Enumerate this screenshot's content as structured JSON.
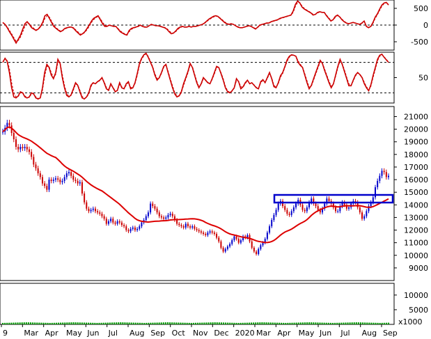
{
  "chart_data": [
    {
      "type": "line",
      "panel": "oscillator",
      "yticks": [
        500,
        0,
        -500
      ],
      "reference_lines": [
        0
      ],
      "series": [
        {
          "color": "#cc0000",
          "style": "solid",
          "values": [
            80,
            20,
            -80,
            -200,
            -300,
            -420,
            -540,
            -420,
            -300,
            -120,
            40,
            100,
            20,
            -80,
            -120,
            -160,
            -120,
            -40,
            80,
            280,
            320,
            200,
            80,
            -40,
            -100,
            -150,
            -200,
            -160,
            -100,
            -80,
            -60,
            -60,
            -100,
            -180,
            -240,
            -300,
            -260,
            -200,
            -100,
            0,
            120,
            200,
            240,
            280,
            160,
            40,
            -40,
            -40,
            0,
            -20,
            -40,
            -40,
            -120,
            -200,
            -240,
            -280,
            -300,
            -160,
            -100,
            -80,
            -60,
            -40,
            0,
            -40,
            -60,
            -60,
            -20,
            20,
            0,
            -20,
            -20,
            -40,
            -60,
            -80,
            -120,
            -200,
            -260,
            -240,
            -180,
            -100,
            -60,
            -40,
            -60,
            -60,
            -40,
            -60,
            -40,
            -40,
            -20,
            0,
            20,
            60,
            120,
            180,
            220,
            260,
            280,
            260,
            200,
            140,
            80,
            40,
            20,
            40,
            20,
            -20,
            -60,
            -80,
            -80,
            -60,
            -40,
            -20,
            -40,
            -80,
            -120,
            -60,
            0,
            20,
            40,
            60,
            60,
            100,
            120,
            140,
            160,
            200,
            220,
            240,
            260,
            280,
            300,
            420,
            620,
            720,
            660,
            540,
            480,
            440,
            400,
            360,
            300,
            320,
            380,
            400,
            380,
            380,
            280,
            200,
            120,
            160,
            260,
            300,
            240,
            160,
            100,
            60,
            40,
            60,
            80,
            60,
            40,
            20,
            60,
            120,
            -40,
            -80,
            -40,
            80,
            240,
            340,
            480,
            600,
            660,
            680,
            600
          ]
        },
        {
          "color": "#cc0000",
          "style": "dashed",
          "values": [
            60,
            30,
            -50,
            -160,
            -260,
            -380,
            -480,
            -460,
            -360,
            -200,
            -40,
            60,
            40,
            -40,
            -100,
            -140,
            -130,
            -60,
            40,
            200,
            280,
            240,
            120,
            0,
            -80,
            -130,
            -180,
            -170,
            -120,
            -90,
            -70,
            -60,
            -80,
            -150,
            -210,
            -270,
            -270,
            -220,
            -140,
            -40,
            80,
            160,
            220,
            260,
            200,
            80,
            0,
            -30,
            -10,
            -20,
            -30,
            -40,
            -100,
            -170,
            -220,
            -260,
            -280,
            -200,
            -130,
            -90,
            -70,
            -50,
            -10,
            -30,
            -50,
            -60,
            -30,
            10,
            0,
            -10,
            -20,
            -30,
            -50,
            -70,
            -100,
            -170,
            -230,
            -240,
            -200,
            -130,
            -80,
            -50,
            -55,
            -60,
            -45,
            -55,
            -45,
            -40,
            -25,
            -5,
            15,
            50,
            100,
            160,
            200,
            240,
            265,
            260,
            215,
            160,
            100,
            55,
            30,
            35,
            25,
            -10,
            -45,
            -70,
            -80,
            -65,
            -45,
            -25,
            -35,
            -70,
            -105,
            -75,
            -15,
            10,
            30,
            50,
            55,
            90,
            110,
            130,
            150,
            185,
            210,
            230,
            250,
            270,
            290,
            380,
            560,
            680,
            670,
            570,
            500,
            455,
            415,
            375,
            320,
            315,
            360,
            390,
            385,
            380,
            300,
            220,
            145,
            150,
            230,
            285,
            250,
            180,
            115,
            70,
            45,
            55,
            75,
            65,
            45,
            25,
            50,
            105,
            -20,
            -70,
            -50,
            50,
            200,
            310,
            440,
            560,
            640,
            670,
            620
          ]
        }
      ]
    },
    {
      "type": "line",
      "panel": "stochastic",
      "yticks": [
        50
      ],
      "reference_lines": [
        80,
        20
      ],
      "series": [
        {
          "color": "#cc0000",
          "style": "solid",
          "values": [
            80,
            88,
            82,
            60,
            30,
            12,
            10,
            14,
            22,
            20,
            12,
            10,
            12,
            20,
            18,
            10,
            8,
            10,
            30,
            60,
            76,
            70,
            55,
            48,
            60,
            86,
            78,
            50,
            30,
            15,
            12,
            16,
            28,
            40,
            35,
            22,
            10,
            8,
            12,
            20,
            35,
            40,
            38,
            42,
            45,
            50,
            40,
            28,
            25,
            38,
            30,
            22,
            25,
            40,
            30,
            28,
            38,
            42,
            28,
            30,
            40,
            58,
            78,
            88,
            95,
            98,
            90,
            80,
            70,
            55,
            45,
            50,
            60,
            72,
            76,
            60,
            45,
            30,
            18,
            12,
            14,
            22,
            38,
            50,
            62,
            78,
            70,
            55,
            40,
            30,
            38,
            50,
            45,
            40,
            38,
            48,
            60,
            72,
            70,
            58,
            45,
            30,
            22,
            20,
            24,
            30,
            48,
            42,
            28,
            32,
            40,
            45,
            38,
            40,
            35,
            30,
            28,
            42,
            46,
            40,
            50,
            60,
            48,
            32,
            30,
            40,
            54,
            60,
            72,
            85,
            92,
            95,
            94,
            92,
            80,
            74,
            70,
            55,
            40,
            28,
            35,
            48,
            60,
            72,
            84,
            78,
            64,
            52,
            40,
            30,
            38,
            55,
            72,
            86,
            76,
            62,
            48,
            34,
            34,
            45,
            55,
            60,
            56,
            50,
            38,
            30,
            24,
            36,
            54,
            70,
            86,
            94,
            96,
            90,
            85,
            80
          ]
        },
        {
          "color": "#cc0000",
          "style": "dashed",
          "values": [
            82,
            86,
            84,
            68,
            40,
            20,
            12,
            13,
            20,
            21,
            14,
            11,
            11,
            18,
            18,
            12,
            9,
            9,
            25,
            52,
            72,
            72,
            60,
            50,
            56,
            80,
            80,
            56,
            35,
            19,
            13,
            15,
            25,
            37,
            36,
            25,
            13,
            9,
            11,
            18,
            32,
            39,
            38,
            41,
            44,
            49,
            42,
            31,
            26,
            35,
            31,
            24,
            24,
            37,
            32,
            28,
            35,
            41,
            31,
            30,
            38,
            54,
            74,
            86,
            93,
            97,
            92,
            82,
            72,
            58,
            48,
            49,
            58,
            70,
            75,
            63,
            48,
            34,
            21,
            14,
            14,
            20,
            34,
            47,
            59,
            75,
            72,
            58,
            43,
            32,
            36,
            48,
            46,
            41,
            38,
            46,
            57,
            70,
            70,
            60,
            48,
            33,
            24,
            21,
            23,
            29,
            44,
            43,
            32,
            31,
            38,
            44,
            39,
            39,
            36,
            31,
            29,
            39,
            45,
            41,
            48,
            58,
            50,
            35,
            31,
            38,
            51,
            58,
            70,
            82,
            90,
            94,
            94,
            92,
            83,
            76,
            71,
            58,
            44,
            31,
            33,
            45,
            57,
            69,
            81,
            79,
            67,
            55,
            43,
            33,
            37,
            52,
            69,
            83,
            78,
            65,
            51,
            38,
            34,
            43,
            53,
            59,
            57,
            51,
            41,
            32,
            26,
            33,
            50,
            66,
            83,
            92,
            95,
            91,
            86,
            81
          ]
        }
      ]
    },
    {
      "type": "candlestick",
      "panel": "price",
      "yticks": [
        21000,
        20000,
        19000,
        18000,
        17000,
        16000,
        15000,
        14000,
        13000,
        12000,
        11000,
        10000,
        9000
      ],
      "x_tick_labels": [
        "9",
        "Mar",
        "Apr",
        "May",
        "Jun",
        "Jul",
        "Aug",
        "Sep",
        "Oct",
        "Nov",
        "Dec",
        "2020",
        "Mar",
        "Apr",
        "May",
        "Jun",
        "Jul",
        "Aug",
        "Sep"
      ],
      "close": [
        19800,
        20100,
        20500,
        20300,
        19700,
        19200,
        18600,
        18400,
        18600,
        18500,
        18600,
        18400,
        18200,
        17800,
        17200,
        16900,
        16500,
        16200,
        15700,
        15500,
        15200,
        16000,
        15900,
        16000,
        16100,
        16000,
        15800,
        15900,
        16200,
        16500,
        16600,
        16300,
        16000,
        15900,
        15700,
        15800,
        14900,
        14200,
        13700,
        13500,
        13600,
        13700,
        13500,
        13400,
        13300,
        13100,
        12900,
        12500,
        12700,
        12900,
        12600,
        12500,
        12700,
        12600,
        12400,
        12300,
        12000,
        11900,
        12100,
        12200,
        12000,
        12100,
        12300,
        12600,
        12800,
        13100,
        13400,
        14100,
        13900,
        13700,
        13400,
        13100,
        13000,
        12900,
        13000,
        13200,
        13300,
        13100,
        12800,
        12500,
        12400,
        12300,
        12200,
        12500,
        12300,
        12200,
        12300,
        12100,
        12000,
        11900,
        11800,
        11700,
        11600,
        11800,
        11900,
        11800,
        11700,
        11400,
        11100,
        10600,
        10300,
        10500,
        10700,
        10900,
        11200,
        11500,
        11300,
        11000,
        11200,
        11500,
        11400,
        11600,
        11100,
        10600,
        10300,
        10100,
        10500,
        10800,
        11000,
        11300,
        11800,
        12300,
        12800,
        13200,
        13600,
        14100,
        14300,
        13900,
        13600,
        13300,
        13200,
        13500,
        13800,
        14100,
        14400,
        14000,
        13600,
        13500,
        13800,
        14200,
        14500,
        14100,
        13900,
        13600,
        13400,
        13700,
        14100,
        14500,
        14300,
        14100,
        13800,
        13500,
        13500,
        13900,
        14200,
        14000,
        13700,
        13800,
        14100,
        14300,
        14200,
        13800,
        13400,
        12900,
        13100,
        13500,
        13900,
        14200,
        14600,
        15400,
        15900,
        16300,
        16700,
        16600,
        16200,
        16300
      ]
    },
    {
      "type": "bar",
      "panel": "volume",
      "yticks": [
        10000,
        5000
      ],
      "unit_label": "x1000",
      "values": [
        500,
        520,
        540,
        560,
        580,
        600,
        620,
        640,
        660,
        680,
        700,
        720,
        700,
        680,
        660,
        640,
        620,
        600,
        580,
        560,
        540,
        520,
        500,
        520,
        540,
        560,
        580,
        600,
        620,
        640,
        660,
        680,
        700,
        720,
        700,
        680,
        660,
        640,
        620,
        600,
        580,
        560,
        540,
        520,
        500,
        520,
        540,
        560,
        580,
        600,
        620,
        640,
        660,
        680,
        700,
        720,
        700,
        680,
        660,
        640,
        620,
        600,
        580,
        560,
        540,
        520,
        500,
        520,
        540,
        560,
        580,
        600,
        620,
        640,
        660,
        680,
        700,
        720,
        700,
        680,
        660,
        640,
        620,
        600,
        580,
        560,
        540,
        520,
        500,
        520,
        540,
        560,
        580,
        600,
        620,
        640,
        660,
        680,
        700,
        720,
        700,
        680,
        660,
        640,
        620,
        600,
        580,
        560,
        540,
        520,
        500,
        520,
        540,
        560,
        580,
        600,
        620,
        640,
        660,
        680,
        700,
        720,
        700,
        680,
        660,
        640,
        620,
        600,
        580,
        560,
        540,
        520,
        500,
        520,
        540,
        560,
        580,
        600,
        620,
        640,
        660,
        680,
        700,
        720,
        700,
        680,
        660,
        640,
        620,
        600,
        580,
        560,
        540,
        520,
        500,
        520,
        540,
        560,
        580,
        600,
        620,
        640,
        660,
        680,
        700,
        720,
        700,
        680,
        660,
        640,
        620,
        600,
        580,
        560,
        540,
        520,
        500,
        520,
        540,
        560,
        580
      ]
    }
  ]
}
